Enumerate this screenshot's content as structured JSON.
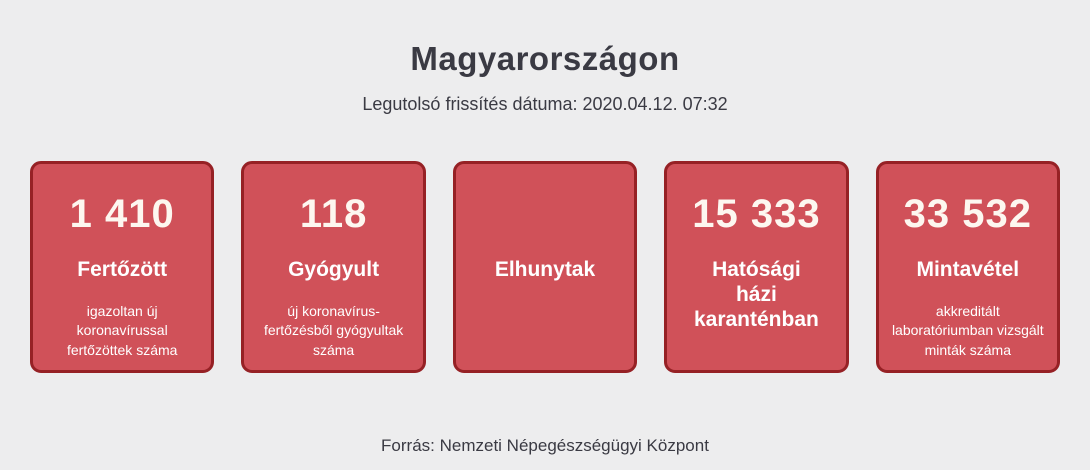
{
  "page": {
    "title": "Magyarországon",
    "subtitle": "Legutolsó frissítés dátuma: 2020.04.12. 07:32",
    "source": "Forrás: Nemzeti Népegészségügyi Központ"
  },
  "colors": {
    "page_background": "#ededee",
    "card_background": "#d05159",
    "card_border": "#962125",
    "card_text": "#ffffff",
    "heading_text": "#3a3a43"
  },
  "cards": [
    {
      "value": "1 410",
      "label": "Fertőzött",
      "description": "igazoltan új koronavírussal fertőzöttek száma"
    },
    {
      "value": "118",
      "label": "Gyógyult",
      "description": "új koronavírus-fertőzésből gyógyultak száma"
    },
    {
      "value": "",
      "label": "Elhunytak",
      "description": ""
    },
    {
      "value": "15 333",
      "label": "Hatósági\nházi\nkaranténban",
      "description": ""
    },
    {
      "value": "33 532",
      "label": "Mintavétel",
      "description": "akkreditált laboratóriumban vizsgált minták száma"
    }
  ]
}
